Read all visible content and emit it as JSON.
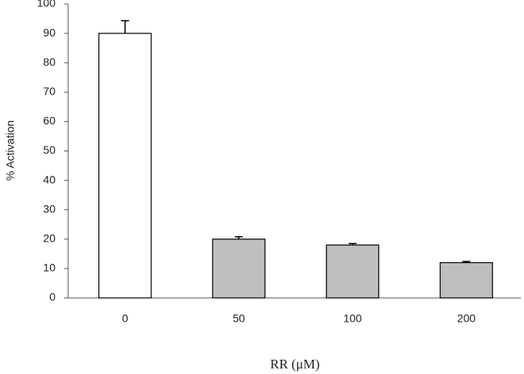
{
  "chart_data": {
    "type": "bar",
    "x_label": "RR (μM)",
    "y_label": "% Activation",
    "categories": [
      "0",
      "50",
      "100",
      "200"
    ],
    "values": [
      90,
      20,
      18,
      12
    ],
    "errors": [
      4.3,
      0.8,
      0.5,
      0.4
    ],
    "colors": [
      "#ffffff",
      "#bfbfbf",
      "#bfbfbf",
      "#bfbfbf"
    ],
    "ylim": [
      0,
      100
    ],
    "yticks": [
      0,
      10,
      20,
      30,
      40,
      50,
      60,
      70,
      80,
      90,
      100
    ],
    "grid": false
  }
}
